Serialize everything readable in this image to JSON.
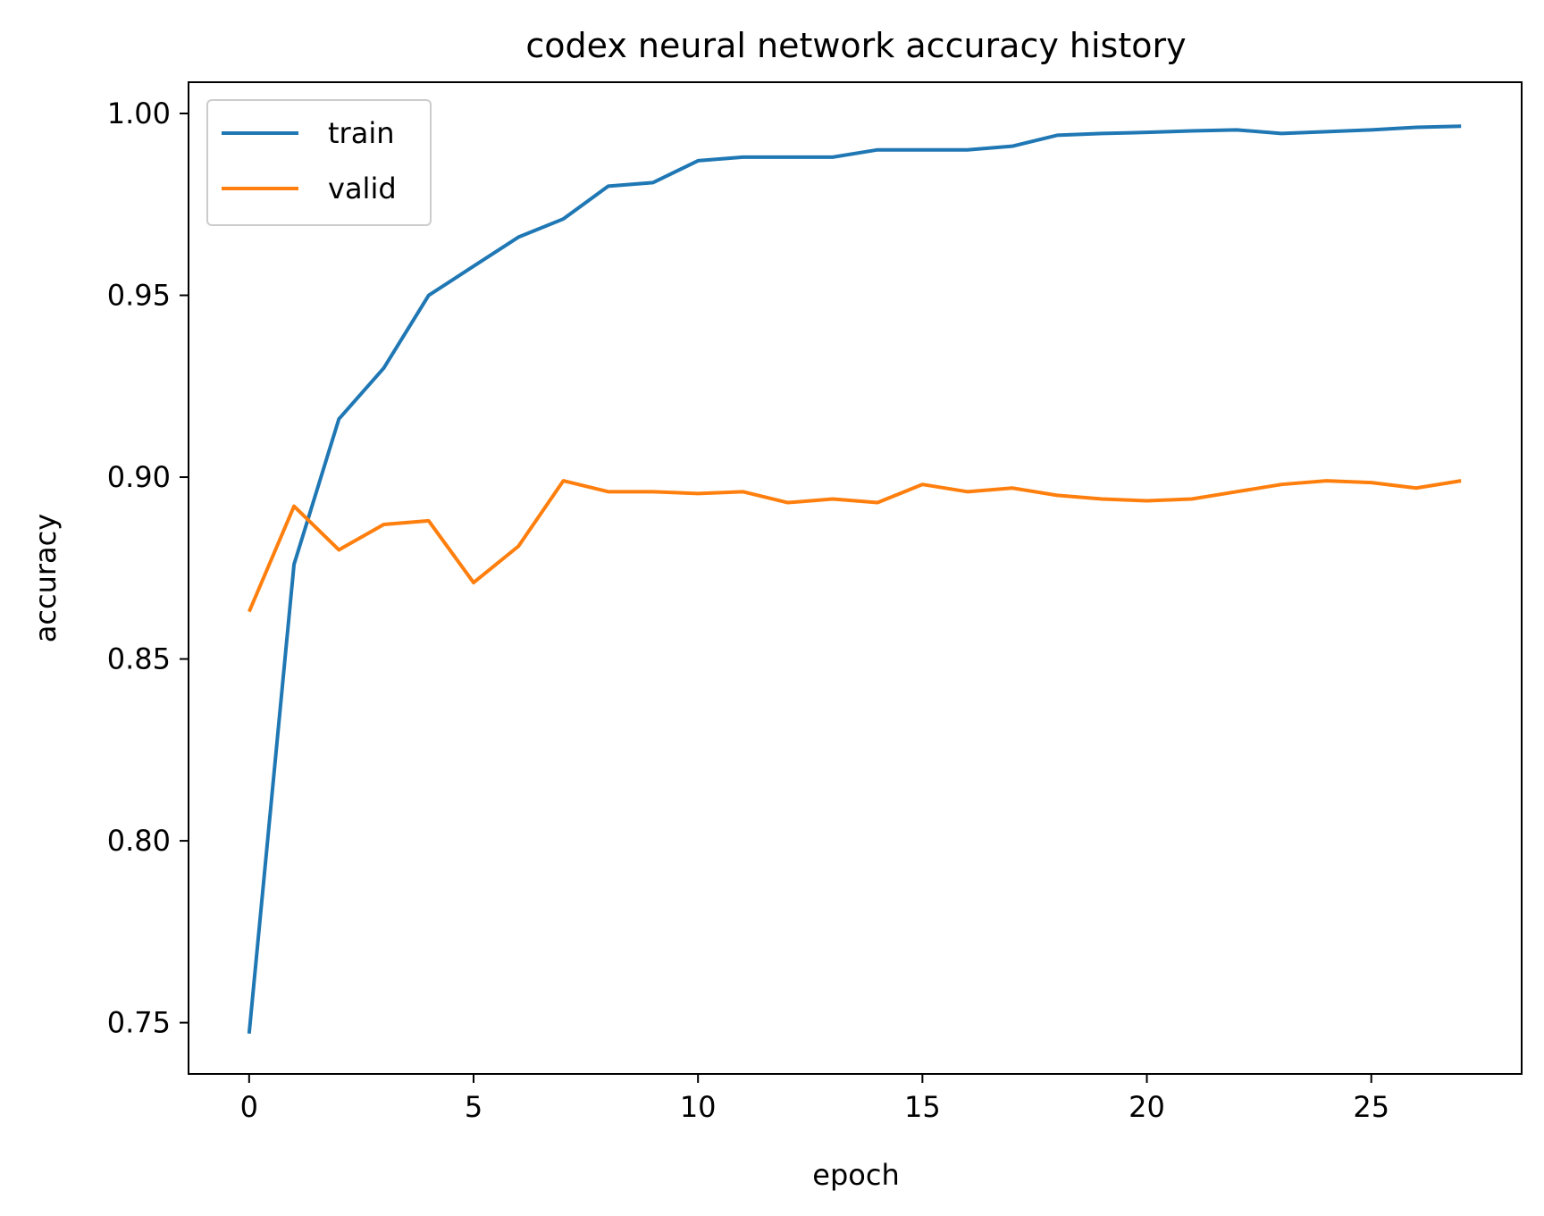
{
  "chart_data": {
    "type": "line",
    "title": "codex neural network accuracy history",
    "xlabel": "epoch",
    "ylabel": "accuracy",
    "xlim": [
      -1.35,
      28.35
    ],
    "ylim": [
      0.7359,
      1.0086
    ],
    "xticks": [
      0,
      5,
      10,
      15,
      20,
      25
    ],
    "xtick_labels": [
      "0",
      "5",
      "10",
      "15",
      "20",
      "25"
    ],
    "yticks": [
      0.75,
      0.8,
      0.85,
      0.9,
      0.95,
      1.0
    ],
    "ytick_labels": [
      "0.75",
      "0.80",
      "0.85",
      "0.90",
      "0.95",
      "1.00"
    ],
    "grid": false,
    "legend_position": "upper-left",
    "x": [
      0,
      1,
      2,
      3,
      4,
      5,
      6,
      7,
      8,
      9,
      10,
      11,
      12,
      13,
      14,
      15,
      16,
      17,
      18,
      19,
      20,
      21,
      22,
      23,
      24,
      25,
      26,
      27
    ],
    "series": [
      {
        "name": "train",
        "color": "#1f77b4",
        "values": [
          0.747,
          0.876,
          0.916,
          0.93,
          0.95,
          0.958,
          0.966,
          0.971,
          0.98,
          0.981,
          0.987,
          0.988,
          0.988,
          0.988,
          0.99,
          0.99,
          0.99,
          0.991,
          0.994,
          0.9945,
          0.9948,
          0.9952,
          0.9955,
          0.9945,
          0.995,
          0.9955,
          0.9962,
          0.9965
        ]
      },
      {
        "name": "valid",
        "color": "#ff7f0e",
        "values": [
          0.863,
          0.892,
          0.88,
          0.887,
          0.888,
          0.871,
          0.881,
          0.899,
          0.896,
          0.896,
          0.8955,
          0.896,
          0.893,
          0.894,
          0.893,
          0.898,
          0.896,
          0.897,
          0.895,
          0.894,
          0.8935,
          0.894,
          0.896,
          0.898,
          0.899,
          0.8985,
          0.897,
          0.899
        ]
      }
    ]
  }
}
